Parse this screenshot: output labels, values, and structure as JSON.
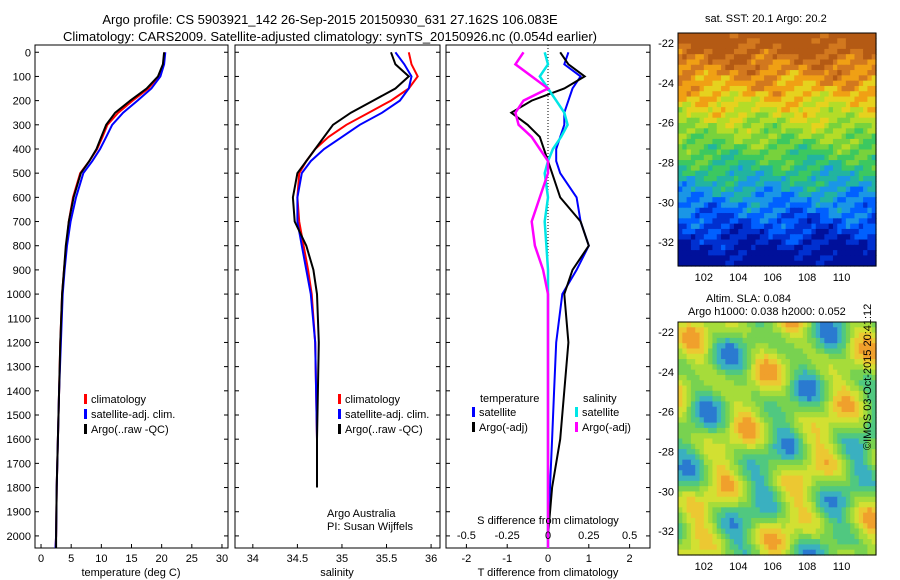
{
  "header": {
    "line1": "Argo profile: CS 5903921_142 26-Sep-2015 20150930_631 27.162S 106.083E",
    "line2": "Climatology: CARS2009. Satellite-adjusted climatology: synTS_20150926.nc (0.054d earlier)"
  },
  "colors": {
    "climatology": "#ff0000",
    "satellite": "#0000ff",
    "argo": "#000000",
    "salinity_sat": "#00e6e6",
    "salinity_argo": "#ff00ff"
  },
  "depth_ticks": [
    "0",
    "100",
    "200",
    "300",
    "400",
    "500",
    "600",
    "700",
    "800",
    "900",
    "1000",
    "1100",
    "1200",
    "1300",
    "1400",
    "1500",
    "1600",
    "1700",
    "1800",
    "1900",
    "2000"
  ],
  "panel_temp": {
    "xlabel": "temperature (deg C)",
    "xticks": [
      "0",
      "5",
      "10",
      "15",
      "20",
      "25",
      "30"
    ],
    "legend": [
      "climatology",
      "satellite-adj. clim.",
      "Argo(..raw -QC)"
    ]
  },
  "panel_sal": {
    "xlabel": "salinity",
    "xticks": [
      "34",
      "34.5",
      "35",
      "35.5",
      "36"
    ],
    "legend": [
      "climatology",
      "satellite-adj. clim.",
      "Argo(..raw -QC)"
    ],
    "note1": "Argo Australia",
    "note2": "PI: Susan Wijffels"
  },
  "panel_diff": {
    "xlabel": "T difference from climatology",
    "xticks": [
      "-2",
      "-1",
      "0",
      "1",
      "2"
    ],
    "top_xlabel": "S difference from climatology",
    "top_xticks": [
      "-0.5",
      "-0.25",
      "0",
      "0.25",
      "0.5"
    ],
    "legend_temp_title": "temperature",
    "legend_sal_title": "salinity",
    "legend_items": [
      "satellite",
      "Argo(-adj)",
      "satellite",
      "Argo(-adj)"
    ]
  },
  "map_sst": {
    "title": "sat. SST: 20.1  Argo: 20.2",
    "yticks": [
      "-22",
      "-24",
      "-26",
      "-28",
      "-30",
      "-32"
    ],
    "xticks": [
      "102",
      "104",
      "106",
      "108",
      "110"
    ]
  },
  "map_sla": {
    "title1": "Altim. SLA: 0.084",
    "title2": "Argo h1000: 0.038 h2000: 0.052",
    "yticks": [
      "-22",
      "-24",
      "-26",
      "-28",
      "-30",
      "-32"
    ],
    "xticks": [
      "102",
      "104",
      "106",
      "108",
      "110"
    ]
  },
  "stamp": "©IMOS 03-Oct-2015 20:41:12",
  "chart_data": [
    {
      "type": "line",
      "xlabel": "temperature (deg C)",
      "xlim": [
        -1,
        31
      ],
      "ylim": [
        2050,
        0
      ],
      "series": [
        {
          "name": "climatology",
          "x": [
            20.5,
            20.3,
            19.5,
            17.8,
            15.2,
            12.8,
            11.0,
            10.2,
            9.3,
            8.0,
            6.5,
            5.3,
            4.6,
            4.2,
            3.8,
            3.5,
            3.2,
            3.0,
            2.8,
            2.6,
            2.5,
            2.4
          ],
          "y": [
            0,
            50,
            100,
            150,
            200,
            250,
            300,
            350,
            400,
            450,
            500,
            600,
            700,
            800,
            900,
            1000,
            1200,
            1400,
            1600,
            1800,
            2000,
            2050
          ]
        },
        {
          "name": "satellite-adj. clim.",
          "x": [
            20.6,
            20.4,
            19.8,
            18.3,
            16.0,
            13.6,
            11.8,
            10.8,
            9.8,
            8.5,
            7.0,
            5.8,
            4.9,
            4.3,
            3.9,
            3.6,
            3.3,
            3.0,
            2.8,
            2.6,
            2.5,
            2.4
          ],
          "y": [
            0,
            50,
            100,
            150,
            200,
            250,
            300,
            350,
            400,
            450,
            500,
            600,
            700,
            800,
            900,
            1000,
            1200,
            1400,
            1600,
            1800,
            2000,
            2050
          ]
        },
        {
          "name": "Argo(..raw -QC)",
          "x": [
            20.4,
            20.2,
            19.4,
            17.5,
            14.8,
            12.3,
            10.8,
            10.0,
            9.2,
            8.0,
            6.6,
            5.4,
            4.6,
            4.1,
            3.8,
            3.5,
            3.2,
            3.0,
            2.8,
            2.6,
            2.5,
            2.5
          ],
          "y": [
            0,
            50,
            100,
            150,
            200,
            250,
            300,
            350,
            400,
            450,
            500,
            600,
            700,
            800,
            900,
            1000,
            1200,
            1400,
            1600,
            1800,
            2000,
            2050
          ]
        }
      ]
    },
    {
      "type": "line",
      "xlabel": "salinity",
      "xlim": [
        33.8,
        36.1
      ],
      "ylim": [
        2050,
        0
      ],
      "series": [
        {
          "name": "climatology",
          "x": [
            35.75,
            35.78,
            35.85,
            35.75,
            35.55,
            35.3,
            35.05,
            34.85,
            34.7,
            34.6,
            34.52,
            34.5,
            34.52,
            34.57,
            34.62,
            34.66,
            34.7,
            34.71,
            34.72,
            34.72
          ],
          "y": [
            0,
            50,
            100,
            150,
            200,
            250,
            300,
            350,
            400,
            450,
            500,
            600,
            700,
            800,
            900,
            1000,
            1200,
            1400,
            1600,
            1800
          ]
        },
        {
          "name": "satellite-adj. clim.",
          "x": [
            35.6,
            35.7,
            35.78,
            35.75,
            35.65,
            35.45,
            35.2,
            35.0,
            34.8,
            34.65,
            34.55,
            34.5,
            34.5,
            34.55,
            34.6,
            34.65,
            34.7,
            34.71,
            34.72,
            34.72
          ],
          "y": [
            0,
            50,
            100,
            150,
            200,
            250,
            300,
            350,
            400,
            450,
            500,
            600,
            700,
            800,
            900,
            1000,
            1200,
            1400,
            1600,
            1800
          ]
        },
        {
          "name": "Argo(..raw -QC)",
          "x": [
            35.55,
            35.6,
            35.75,
            35.6,
            35.35,
            35.1,
            34.9,
            34.8,
            34.7,
            34.6,
            34.5,
            34.45,
            34.47,
            34.6,
            34.68,
            34.72,
            34.74,
            34.73,
            34.72,
            34.72
          ],
          "y": [
            0,
            50,
            100,
            150,
            200,
            250,
            300,
            350,
            400,
            450,
            500,
            600,
            700,
            800,
            900,
            1000,
            1200,
            1400,
            1600,
            1800
          ]
        }
      ]
    },
    {
      "type": "line",
      "xlabel": "T difference from climatology",
      "xlim": [
        -2.5,
        2.5
      ],
      "ylim": [
        2050,
        0
      ],
      "series": [
        {
          "name": "satellite",
          "x": [
            0.5,
            0.4,
            0.8,
            0.6,
            0.5,
            0.4,
            0.4,
            0.3,
            0.2,
            0.2,
            0.3,
            0.7,
            0.8,
            1.0,
            0.7,
            0.35,
            0.2,
            0.15,
            0.1,
            0.05,
            0.0,
            0.0
          ],
          "y": [
            0,
            50,
            100,
            150,
            200,
            250,
            300,
            350,
            400,
            450,
            500,
            600,
            700,
            800,
            900,
            1000,
            1200,
            1400,
            1600,
            1800,
            2000,
            2050
          ]
        },
        {
          "name": "Argo(-adj)",
          "x": [
            0.3,
            0.5,
            0.9,
            0.4,
            -0.4,
            -0.9,
            -0.5,
            -0.2,
            -0.1,
            0.0,
            0.1,
            0.3,
            0.8,
            1.0,
            0.6,
            0.4,
            0.5,
            0.4,
            0.3,
            0.1,
            0.0,
            0.0
          ],
          "y": [
            0,
            50,
            100,
            150,
            200,
            250,
            300,
            350,
            400,
            450,
            500,
            600,
            700,
            800,
            900,
            1000,
            1200,
            1400,
            1600,
            1800,
            2000,
            2050
          ]
        }
      ]
    },
    {
      "type": "line",
      "xlabel": "S difference from climatology",
      "xlim": [
        -0.625,
        0.625
      ],
      "ylim": [
        2050,
        0
      ],
      "series": [
        {
          "name": "satellite",
          "x": [
            -0.02,
            0.0,
            -0.05,
            0.0,
            0.05,
            0.1,
            0.12,
            0.08,
            0.03,
            0.0,
            -0.02,
            0.0,
            -0.02,
            -0.01,
            0.0,
            0.0,
            0.0,
            0.0,
            0.0,
            0.0,
            0.0,
            0.0
          ],
          "y": [
            0,
            50,
            100,
            150,
            200,
            250,
            300,
            350,
            400,
            450,
            500,
            600,
            700,
            800,
            900,
            1000,
            1200,
            1400,
            1600,
            1800,
            2000,
            2050
          ]
        },
        {
          "name": "Argo(-adj)",
          "x": [
            -0.15,
            -0.2,
            -0.1,
            0.0,
            -0.15,
            -0.2,
            -0.18,
            -0.1,
            -0.05,
            0.0,
            0.0,
            -0.05,
            -0.1,
            -0.08,
            -0.03,
            0.0,
            0.0,
            0.0,
            0.0,
            0.0,
            0.0,
            0.0
          ],
          "y": [
            0,
            50,
            100,
            150,
            200,
            250,
            300,
            350,
            400,
            450,
            500,
            600,
            700,
            800,
            900,
            1000,
            1200,
            1400,
            1600,
            1800,
            2000,
            2050
          ]
        }
      ]
    },
    {
      "type": "heatmap",
      "title": "sat. SST: 20.1  Argo: 20.2",
      "xlim": [
        100.5,
        112
      ],
      "ylim": [
        -33.2,
        -21.5
      ]
    },
    {
      "type": "heatmap",
      "title": "Altim. SLA: 0.084",
      "xlim": [
        100.5,
        112
      ],
      "ylim": [
        -33.2,
        -21.5
      ]
    }
  ]
}
